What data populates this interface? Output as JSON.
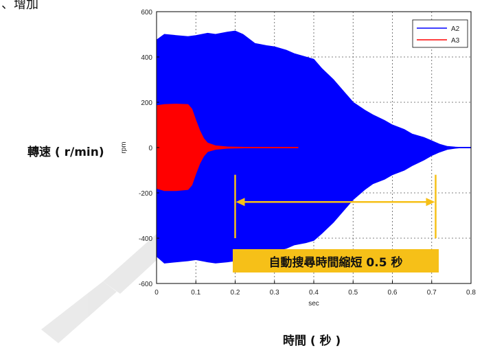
{
  "page": {
    "corner_text": "、增加",
    "ylabel_outer": "轉速 ( r/min)",
    "xlabel_outer": "時間 ( 秒 )",
    "callout": "自動搜尋時間縮短 0.5 秒"
  },
  "colors": {
    "series_a2": "#0000ff",
    "series_a3": "#ff0000",
    "annotation": "#f6c018"
  },
  "chart_data": {
    "type": "line",
    "xlabel": "sec",
    "ylabel": "rpm",
    "xlim": [
      0,
      0.8
    ],
    "ylim": [
      -600,
      600
    ],
    "x_ticks": [
      "0",
      "0.1",
      "0.2",
      "0.3",
      "0.4",
      "0.5",
      "0.6",
      "0.7",
      "0.8"
    ],
    "y_ticks": [
      "-600",
      "-400",
      "-200",
      "0",
      "200",
      "400",
      "600"
    ],
    "grid": true,
    "legend": "top-right",
    "series": [
      {
        "name": "A2",
        "color": "#0000ff",
        "envelope": {
          "x": [
            0,
            0.02,
            0.05,
            0.08,
            0.1,
            0.13,
            0.15,
            0.18,
            0.2,
            0.22,
            0.25,
            0.28,
            0.3,
            0.33,
            0.35,
            0.38,
            0.4,
            0.42,
            0.45,
            0.48,
            0.5,
            0.53,
            0.55,
            0.58,
            0.6,
            0.63,
            0.65,
            0.68,
            0.7,
            0.72,
            0.74,
            0.76,
            0.78,
            0.8
          ],
          "upper": [
            475,
            500,
            495,
            490,
            495,
            505,
            500,
            510,
            515,
            500,
            460,
            450,
            445,
            430,
            415,
            400,
            390,
            350,
            300,
            240,
            200,
            165,
            145,
            120,
            100,
            80,
            60,
            45,
            30,
            15,
            5,
            2,
            0,
            0
          ],
          "lower": [
            -480,
            -510,
            -505,
            -500,
            -495,
            -505,
            -510,
            -505,
            -500,
            -495,
            -480,
            -465,
            -455,
            -445,
            -430,
            -420,
            -410,
            -380,
            -330,
            -270,
            -230,
            -185,
            -160,
            -140,
            -120,
            -100,
            -80,
            -55,
            -35,
            -20,
            -8,
            -3,
            0,
            0
          ]
        }
      },
      {
        "name": "A3",
        "color": "#ff0000",
        "envelope": {
          "x": [
            0,
            0.02,
            0.05,
            0.08,
            0.09,
            0.1,
            0.11,
            0.12,
            0.13,
            0.15,
            0.18,
            0.2,
            0.25,
            0.3,
            0.36
          ],
          "upper": [
            185,
            190,
            192,
            190,
            170,
            120,
            75,
            40,
            20,
            8,
            3,
            2,
            1,
            1,
            1
          ],
          "lower": [
            -180,
            -190,
            -190,
            -185,
            -165,
            -115,
            -70,
            -38,
            -18,
            -8,
            -3,
            -2,
            -1,
            -1,
            -1
          ]
        }
      }
    ],
    "annotation": {
      "type": "interval-arrow",
      "x_start": 0.2,
      "x_end": 0.71,
      "y": -240,
      "y_top": -120,
      "y_bottom": -400
    }
  }
}
